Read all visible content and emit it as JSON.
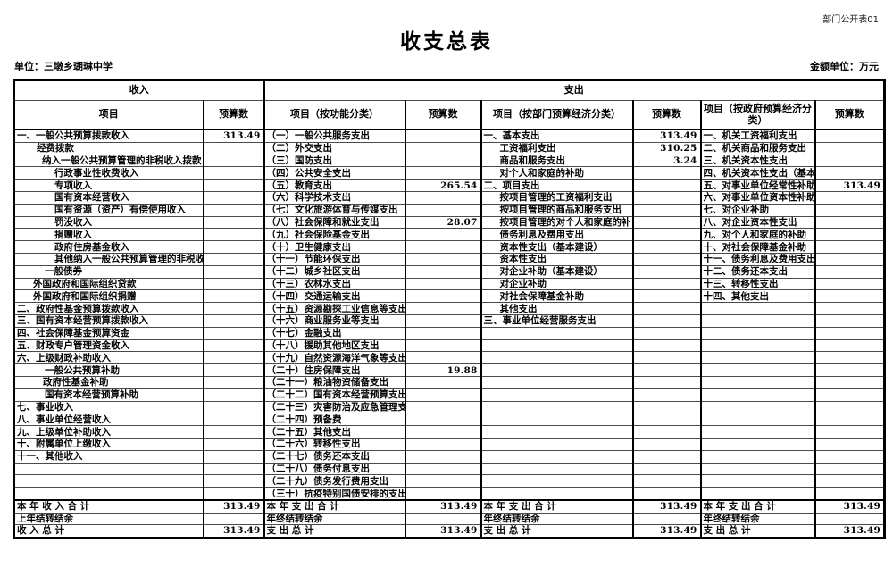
{
  "page": {
    "corner_label": "部门公开表01",
    "title": "收支总表",
    "unit_line": "单位：三墩乡瑚琳中学",
    "amount_unit": "金额单位：万元"
  },
  "table": {
    "group_headers": {
      "income": "收入",
      "expenditure": "支出"
    },
    "columns": [
      "项目",
      "预算数",
      "项目（按功能分类）",
      "预算数",
      "项目（按部门预算经济分类）",
      "预算数",
      "项目（按政府预算经济分类）",
      "预算数"
    ],
    "rows": [
      {
        "c": [
          "一、一般公共预算拨款收入",
          "313.49",
          "（一）一般公共服务支出",
          "",
          "一、基本支出",
          "313.49",
          "一、机关工资福利支出",
          ""
        ],
        "i": [
          2,
          2,
          2,
          2
        ]
      },
      {
        "c": [
          "经费拨款",
          "",
          "（二）外交支出",
          "",
          "工资福利支出",
          "310.25",
          "二、机关商品和服务支出",
          ""
        ],
        "i": [
          24,
          2,
          20,
          2
        ]
      },
      {
        "c": [
          "纳入一般公共预算管理的非税收入拨款",
          "",
          "（三）国防支出",
          "",
          "商品和服务支出",
          "3.24",
          "三、机关资本性支出",
          ""
        ],
        "i": [
          30,
          2,
          20,
          2
        ]
      },
      {
        "c": [
          "行政事业性收费收入",
          "",
          "（四）公共安全支出",
          "",
          "对个人和家庭的补助",
          "",
          "四、机关资本性支出（基本",
          ""
        ],
        "i": [
          44,
          2,
          20,
          2
        ]
      },
      {
        "c": [
          "专项收入",
          "",
          "（五）教育支出",
          "265.54",
          "二、项目支出",
          "",
          "五、对事业单位经常性补助",
          "313.49"
        ],
        "i": [
          44,
          2,
          2,
          2
        ]
      },
      {
        "c": [
          "国有资本经营收入",
          "",
          "（六）科学技术支出",
          "",
          "按项目管理的工资福利支出",
          "",
          "六、对事业单位资本性补助",
          ""
        ],
        "i": [
          44,
          2,
          20,
          2
        ]
      },
      {
        "c": [
          "国有资源（资产）有偿使用收入",
          "",
          "（七）文化旅游体育与传媒支出",
          "",
          "按项目管理的商品和服务支出",
          "",
          "七、对企业补助",
          ""
        ],
        "i": [
          44,
          2,
          20,
          2
        ]
      },
      {
        "c": [
          "罚没收入",
          "",
          "（八）社会保障和就业支出",
          "28.07",
          "按项目管理的对个人和家庭的补",
          "",
          "八、对企业资本性支出",
          ""
        ],
        "i": [
          44,
          2,
          20,
          2
        ]
      },
      {
        "c": [
          "捐赠收入",
          "",
          "（九）社会保险基金支出",
          "",
          "债务利息及费用支出",
          "",
          "九、对个人和家庭的补助",
          ""
        ],
        "i": [
          44,
          2,
          20,
          2
        ]
      },
      {
        "c": [
          "政府住房基金收入",
          "",
          "（十）卫生健康支出",
          "",
          "资本性支出（基本建设）",
          "",
          "十、对社会保障基金补助",
          ""
        ],
        "i": [
          44,
          2,
          20,
          2
        ]
      },
      {
        "c": [
          "其他纳入一般公共预算管理的非税收",
          "",
          "（十一）节能环保支出",
          "",
          "资本性支出",
          "",
          "十一、债务利息及费用支出",
          ""
        ],
        "i": [
          44,
          2,
          20,
          2
        ]
      },
      {
        "c": [
          "一般债券",
          "",
          "（十二）城乡社区支出",
          "",
          "对企业补助（基本建设）",
          "",
          "十二、债务还本支出",
          ""
        ],
        "i": [
          33,
          2,
          20,
          2
        ]
      },
      {
        "c": [
          "外国政府和国际组织贷款",
          "",
          "（十三）农林水支出",
          "",
          "对企业补助",
          "",
          "十三、转移性支出",
          ""
        ],
        "i": [
          20,
          2,
          20,
          2
        ]
      },
      {
        "c": [
          "外国政府和国际组织捐赠",
          "",
          "（十四）交通运输支出",
          "",
          "对社会保障基金补助",
          "",
          "十四、其他支出",
          ""
        ],
        "i": [
          20,
          2,
          20,
          2
        ]
      },
      {
        "c": [
          "二、政府性基金预算拨款收入",
          "",
          "（十五）资源勘探工业信息等支出",
          "",
          "其他支出",
          "",
          "",
          ""
        ],
        "i": [
          2,
          2,
          20,
          2
        ]
      },
      {
        "c": [
          "三、国有资本经营预算拨款收入",
          "",
          "（十六）商业服务业等支出",
          "",
          "三、事业单位经营服务支出",
          "",
          "",
          ""
        ],
        "i": [
          2,
          2,
          2,
          2
        ]
      },
      {
        "c": [
          "四、社会保障基金预算资金",
          "",
          "（十七）金融支出",
          "",
          "",
          "",
          "",
          ""
        ],
        "i": [
          2,
          2,
          2,
          2
        ]
      },
      {
        "c": [
          "五、财政专户管理资金收入",
          "",
          "（十八）援助其他地区支出",
          "",
          "",
          "",
          "",
          ""
        ],
        "i": [
          2,
          2,
          2,
          2
        ]
      },
      {
        "c": [
          "六、上级财政补助收入",
          "",
          "（十九）自然资源海洋气象等支出",
          "",
          "",
          "",
          "",
          ""
        ],
        "i": [
          2,
          2,
          2,
          2
        ]
      },
      {
        "c": [
          "一般公共预算补助",
          "",
          "（二十）住房保障支出",
          "19.88",
          "",
          "",
          "",
          ""
        ],
        "i": [
          33,
          2,
          2,
          2
        ]
      },
      {
        "c": [
          "政府性基金补助",
          "",
          "（二十一）粮油物资储备支出",
          "",
          "",
          "",
          "",
          ""
        ],
        "i": [
          31,
          2,
          2,
          2
        ]
      },
      {
        "c": [
          "国有资本经营预算补助",
          "",
          "（二十二）国有资本经营预算支出",
          "",
          "",
          "",
          "",
          ""
        ],
        "i": [
          33,
          2,
          2,
          2
        ]
      },
      {
        "c": [
          "七、事业收入",
          "",
          "（二十三）灾害防治及应急管理支",
          "",
          "",
          "",
          "",
          ""
        ],
        "i": [
          2,
          2,
          2,
          2
        ]
      },
      {
        "c": [
          "八、事业单位经营收入",
          "",
          "（二十四）预备费",
          "",
          "",
          "",
          "",
          ""
        ],
        "i": [
          2,
          2,
          2,
          2
        ]
      },
      {
        "c": [
          "九、上级单位补助收入",
          "",
          "（二十五）其他支出",
          "",
          "",
          "",
          "",
          ""
        ],
        "i": [
          2,
          2,
          2,
          2
        ]
      },
      {
        "c": [
          "十、附属单位上缴收入",
          "",
          "（二十六）转移性支出",
          "",
          "",
          "",
          "",
          ""
        ],
        "i": [
          2,
          2,
          2,
          2
        ]
      },
      {
        "c": [
          "十一、其他收入",
          "",
          "（二十七）债务还本支出",
          "",
          "",
          "",
          "",
          ""
        ],
        "i": [
          2,
          2,
          2,
          2
        ]
      },
      {
        "c": [
          "",
          "",
          "（二十八）债务付息支出",
          "",
          "",
          "",
          "",
          ""
        ],
        "i": [
          2,
          2,
          2,
          2
        ]
      },
      {
        "c": [
          "",
          "",
          "（二十九）债务发行费用支出",
          "",
          "",
          "",
          "",
          ""
        ],
        "i": [
          2,
          2,
          2,
          2
        ]
      },
      {
        "c": [
          "",
          "",
          "（三十）抗疫特别国债安排的支出",
          "",
          "",
          "",
          "",
          ""
        ],
        "i": [
          2,
          2,
          2,
          2
        ]
      },
      {
        "c": [
          "本 年 收 入 合 计",
          "313.49",
          "本 年 支 出 合 计",
          "313.49",
          "本 年 支 出 合 计",
          "313.49",
          "本 年 支 出 合 计",
          "313.49"
        ],
        "i": [
          2,
          2,
          2,
          2
        ],
        "s": true
      },
      {
        "c": [
          "上年结转结余",
          "",
          "年终结转结余",
          "",
          "年终结转结余",
          "",
          "年终结转结余",
          ""
        ],
        "i": [
          2,
          2,
          2,
          2
        ],
        "s": true
      },
      {
        "c": [
          "收 入 总 计",
          "313.49",
          "支 出 总 计",
          "313.49",
          "支 出 总 计",
          "313.49",
          "支 出 总 计",
          "313.49"
        ],
        "i": [
          2,
          2,
          2,
          2
        ],
        "s": true
      }
    ]
  }
}
